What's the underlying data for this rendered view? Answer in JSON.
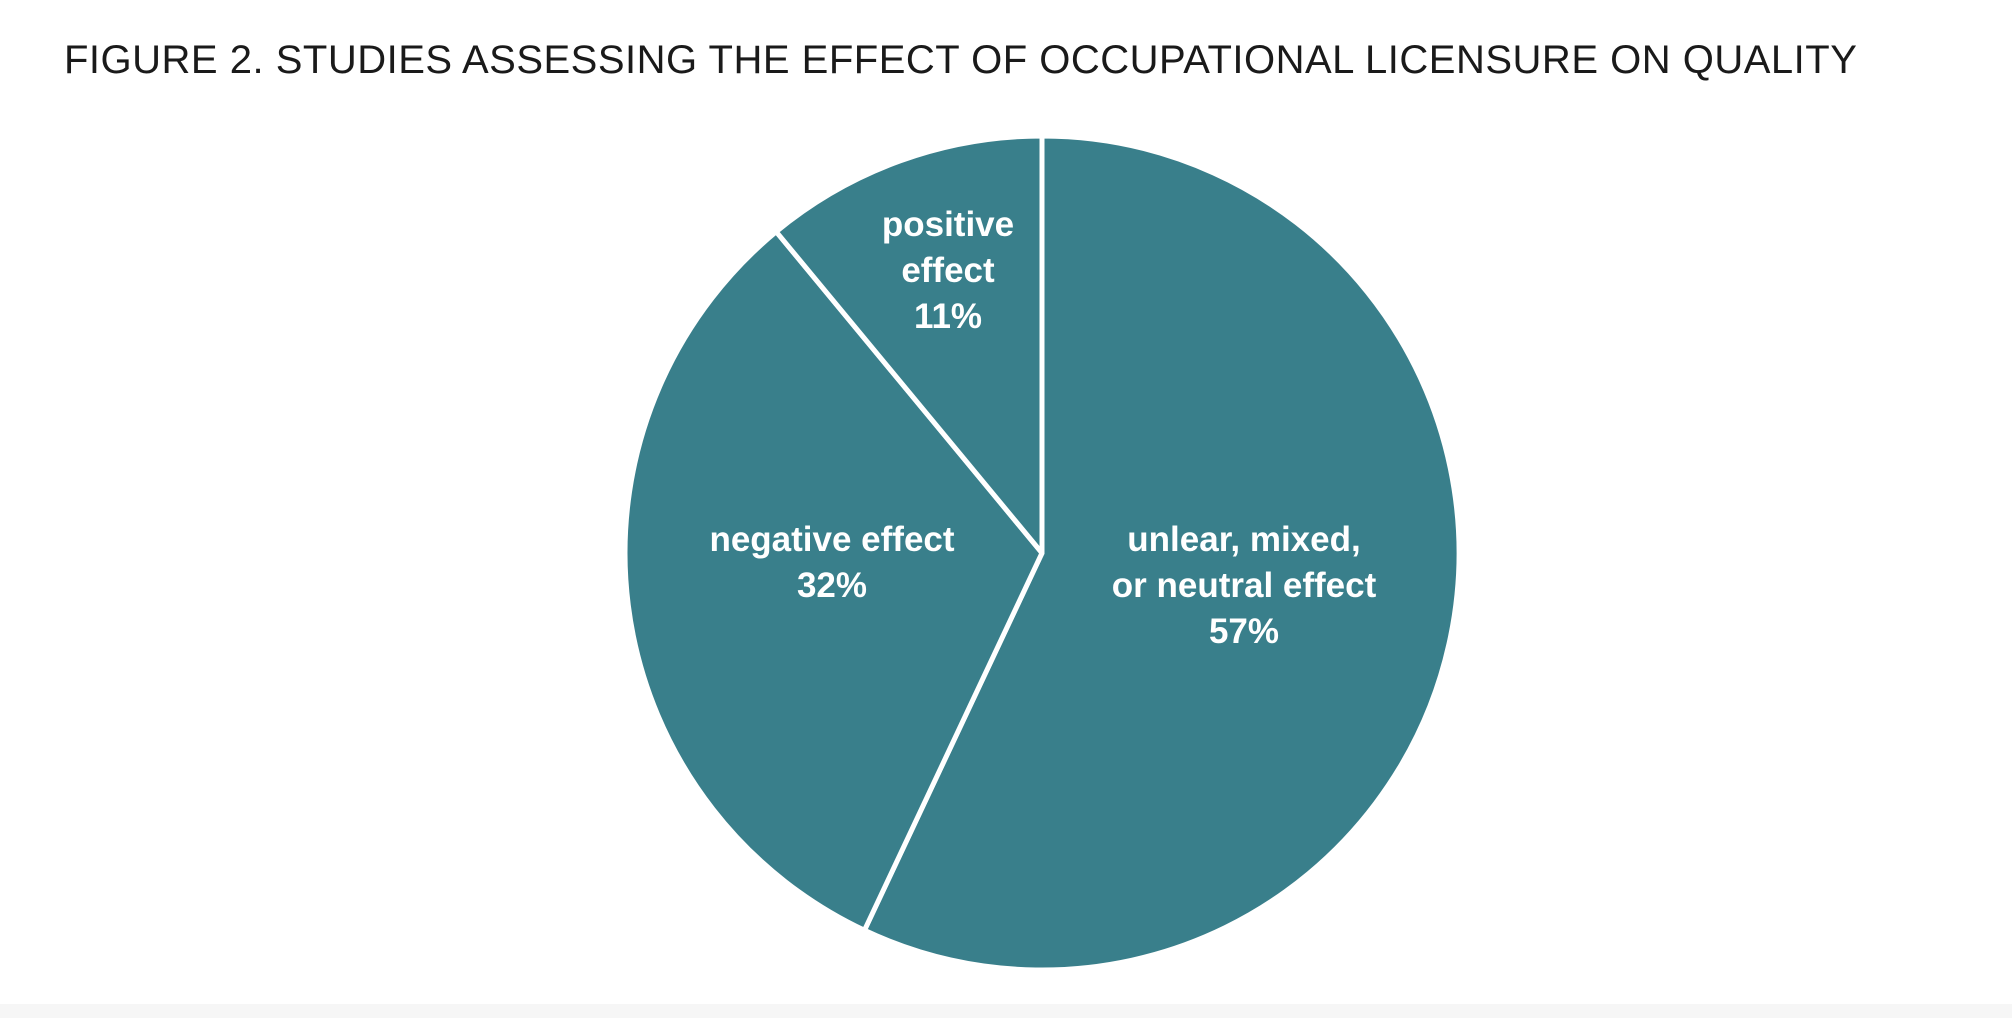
{
  "title": "FIGURE 2. STUDIES ASSESSING THE EFFECT OF OCCUPATIONAL LICENSURE ON QUALITY",
  "colors": {
    "slice_fill": "#397f8b",
    "slice_border": "#ffffff",
    "label_text": "#ffffff",
    "title_text": "#1a1a1a",
    "background": "#ffffff"
  },
  "chart_data": {
    "type": "pie",
    "title": "FIGURE 2. STUDIES ASSESSING THE EFFECT OF OCCUPATIONAL LICENSURE ON QUALITY",
    "start": "12 o'clock",
    "direction": "clockwise",
    "legend": "none",
    "slices": [
      {
        "category": "unclear, mixed, or neutral effect",
        "label_lines": [
          "unlear, mixed,",
          "or neutral effect",
          "57%"
        ],
        "percent": 57,
        "value": 57
      },
      {
        "category": "negative effect",
        "label_lines": [
          "negative effect",
          "32%"
        ],
        "percent": 32,
        "value": 32
      },
      {
        "category": "positive effect",
        "label_lines": [
          "positive",
          "effect",
          "11%"
        ],
        "percent": 11,
        "value": 11
      }
    ]
  }
}
